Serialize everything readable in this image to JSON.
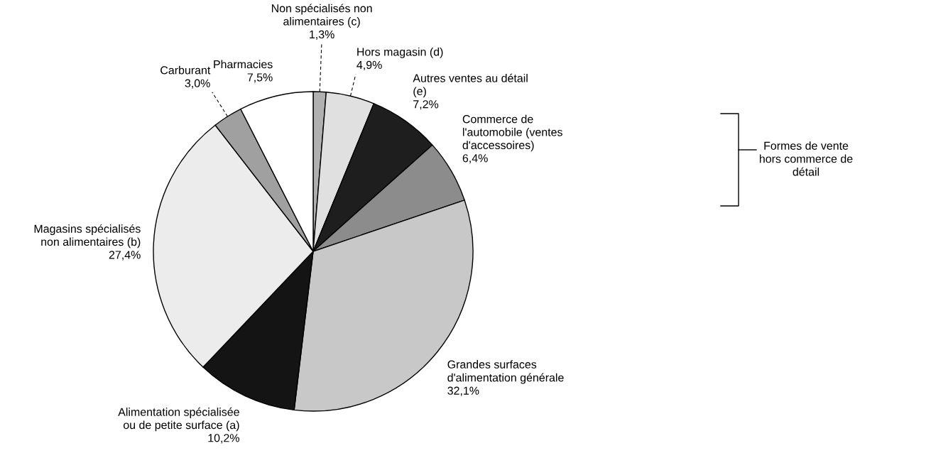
{
  "chart_data": {
    "type": "pie",
    "categories": [
      "Non spécialisés non\nalimentaires (c)",
      "Hors magasin (d)",
      "Autres ventes au détail\n(e)",
      "Commerce de\nl'automobile (ventes\nd'accessoires)",
      "Grandes surfaces\nd'alimentation générale",
      "Alimentation spécialisée\nou de petite surface (a)",
      "Magasins spécialisés\nnon alimentaires (b)",
      "Carburant",
      "Pharmacies"
    ],
    "values": [
      1.3,
      4.9,
      7.2,
      6.4,
      32.1,
      10.2,
      27.4,
      3.0,
      7.5
    ],
    "value_labels": [
      "1,3%",
      "4,9%",
      "7,2%",
      "6,4%",
      "32,1%",
      "10,2%",
      "27,4%",
      "3,0%",
      "7,5%"
    ],
    "colors": [
      "#b0b0b0",
      "#e0e0e0",
      "#1e1e1e",
      "#8c8c8c",
      "#c8c8c8",
      "#141414",
      "#ececec",
      "#a0a0a0",
      "#ffffff"
    ],
    "annotations": [
      "Formes de vente\nhors commerce de\ndétail"
    ]
  }
}
